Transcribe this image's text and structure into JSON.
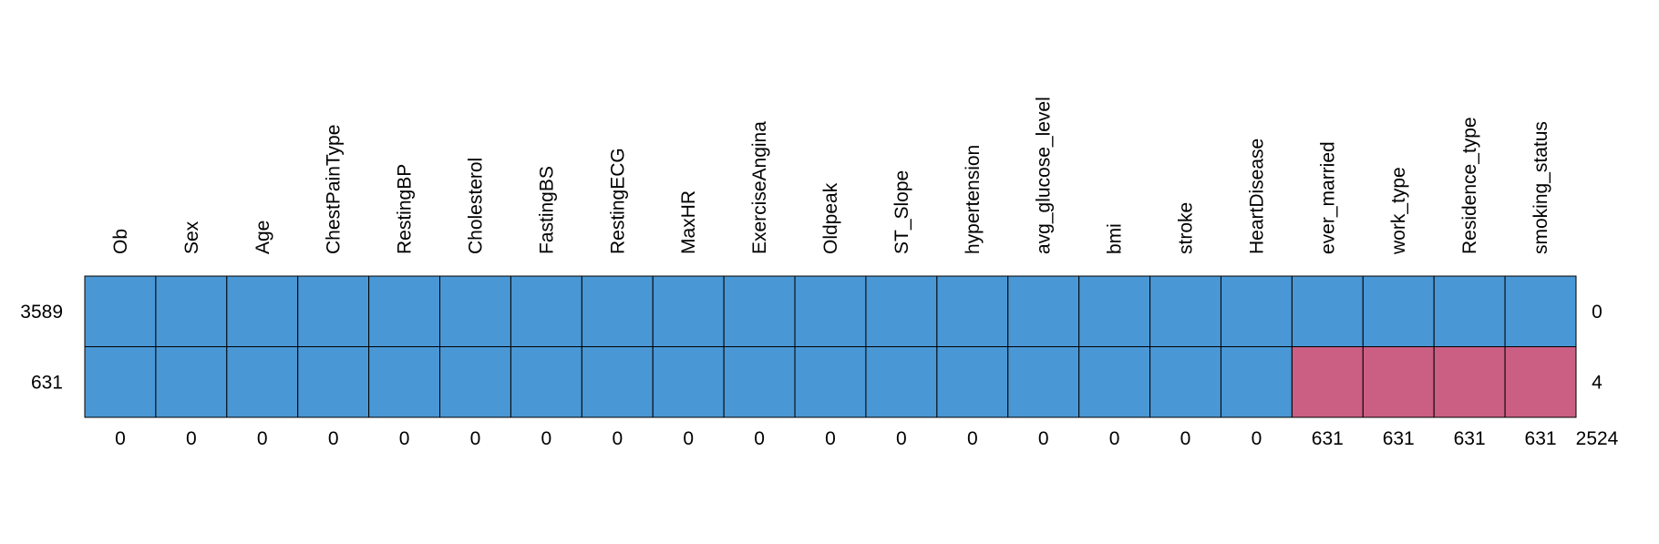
{
  "chart_data": {
    "type": "heatmap",
    "title": "",
    "variables": [
      "Ob",
      "Sex",
      "Age",
      "ChestPainType",
      "RestingBP",
      "Cholesterol",
      "FastingBS",
      "RestingECG",
      "MaxHR",
      "ExerciseAngina",
      "Oldpeak",
      "ST_Slope",
      "hypertension",
      "avg_glucose_level",
      "bmi",
      "stroke",
      "HeartDisease",
      "ever_married",
      "work_type",
      "Residence_type",
      "smoking_status"
    ],
    "rows": [
      {
        "count": "3589",
        "missing_vars": "0",
        "pattern": [
          1,
          1,
          1,
          1,
          1,
          1,
          1,
          1,
          1,
          1,
          1,
          1,
          1,
          1,
          1,
          1,
          1,
          1,
          1,
          1,
          1
        ]
      },
      {
        "count": "631",
        "missing_vars": "4",
        "pattern": [
          1,
          1,
          1,
          1,
          1,
          1,
          1,
          1,
          1,
          1,
          1,
          1,
          1,
          1,
          1,
          1,
          1,
          0,
          0,
          0,
          0
        ]
      }
    ],
    "column_missing_totals": [
      "0",
      "0",
      "0",
      "0",
      "0",
      "0",
      "0",
      "0",
      "0",
      "0",
      "0",
      "0",
      "0",
      "0",
      "0",
      "0",
      "0",
      "631",
      "631",
      "631",
      "631"
    ],
    "total_missing": "2524",
    "colors": {
      "observed": "#4A97D5",
      "missing": "#CB5E83",
      "border": "#000000"
    }
  }
}
